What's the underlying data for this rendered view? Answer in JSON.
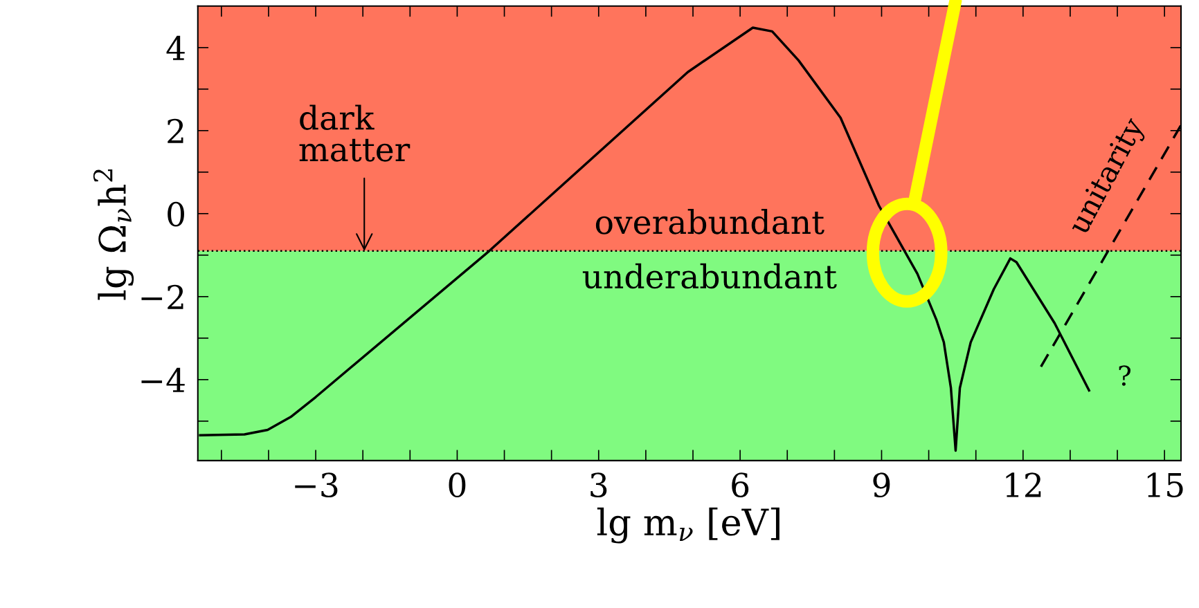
{
  "chart_data": {
    "type": "line",
    "xlabel": "lg m$_{ν}$ [eV]",
    "ylabel": "lg Ω$_{ν}$h$^{2}$",
    "xlim": [
      -5.5,
      15.35
    ],
    "ylim": [
      -5.95,
      5
    ],
    "xticks": [
      {
        "value": -5,
        "label": null
      },
      {
        "value": -4,
        "label": null
      },
      {
        "value": -3,
        "label": "−3"
      },
      {
        "value": -2,
        "label": null
      },
      {
        "value": -1,
        "label": null
      },
      0,
      {
        "value": 1,
        "label": null
      },
      {
        "value": 2,
        "label": null
      },
      3,
      {
        "value": 4,
        "label": null
      },
      {
        "value": 5,
        "label": null
      },
      6,
      {
        "value": 7,
        "label": null
      },
      {
        "value": 8,
        "label": null
      },
      9,
      {
        "value": 10,
        "label": null
      },
      {
        "value": 11,
        "label": null
      },
      12,
      {
        "value": 13,
        "label": null
      },
      {
        "value": 14,
        "label": null
      },
      15
    ],
    "yticks": [
      {
        "value": -5,
        "label": null
      },
      {
        "value": -4,
        "label": "−4"
      },
      {
        "value": -3,
        "label": null
      },
      {
        "value": -2,
        "label": "−2"
      },
      {
        "value": -1,
        "label": null
      },
      0,
      {
        "value": 1,
        "label": null
      },
      2,
      {
        "value": 3,
        "label": null
      },
      4
    ],
    "grid": false,
    "series": [
      {
        "color": "#000000",
        "line_style": "solid",
        "x": [
          -5.45,
          -4.51,
          -4.02,
          -3.53,
          -3.0,
          0.68,
          4.89,
          6.27,
          6.68,
          7.24,
          8.13,
          8.94,
          9.76,
          10.16,
          10.32,
          10.47,
          10.57,
          10.66,
          10.89,
          11.38,
          11.73,
          11.86,
          12.67,
          13.4
        ],
        "values": [
          -5.34,
          -5.32,
          -5.21,
          -4.9,
          -4.42,
          -0.9,
          3.41,
          4.48,
          4.39,
          3.69,
          2.31,
          0.2,
          -1.45,
          -2.55,
          -3.1,
          -4.2,
          -5.71,
          -4.2,
          -3.1,
          -1.82,
          -1.08,
          -1.17,
          -2.64,
          -4.26
        ]
      },
      {
        "name": "unitarity",
        "color": "#000000",
        "line_style": "dashed",
        "x": [
          12.38,
          15.35
        ],
        "values": [
          -3.69,
          2.13
        ]
      }
    ],
    "ref_lines": [
      {
        "axis": "y",
        "value": -0.9,
        "color": "#000000",
        "line_style": "dotted"
      }
    ],
    "bands": [
      {
        "axis": "y",
        "from": -0.9,
        "to": 5,
        "label": "overabundant",
        "color": "#ff745c"
      },
      {
        "axis": "y",
        "from": -5.95,
        "to": -0.9,
        "label": "underabundant",
        "color": "#80fa80"
      }
    ],
    "annotations": [
      {
        "text": "dark\nmatter",
        "x": -1.97,
        "y": -0.9
      },
      {
        "text": "?",
        "x": 13.4,
        "y": -4.26
      }
    ]
  }
}
